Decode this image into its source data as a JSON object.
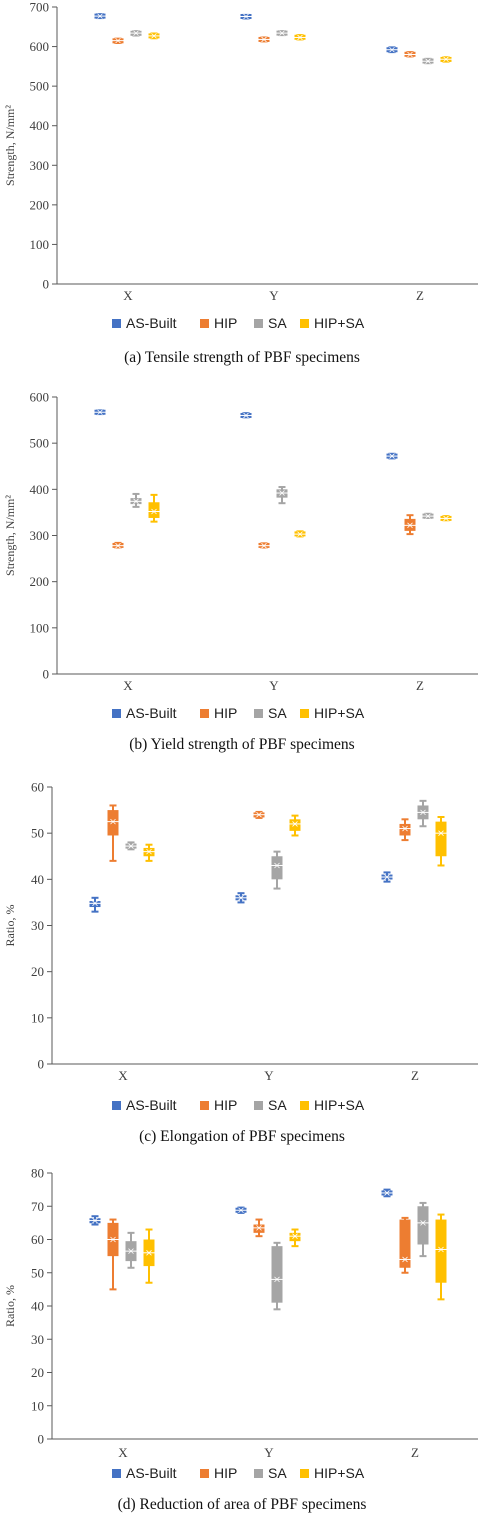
{
  "colors": {
    "AS-Built": "#4472C4",
    "HIP": "#ED7D31",
    "SA": "#A5A5A5",
    "HIP+SA": "#FFC000"
  },
  "chart_data": [
    {
      "type": "box",
      "caption": "(a) Tensile strength of PBF specimens",
      "ylabel": "Strength, N/mm²",
      "ylim": [
        0,
        700
      ],
      "yticks": [
        0,
        100,
        200,
        300,
        400,
        500,
        600,
        700
      ],
      "categories": [
        "X",
        "Y",
        "Z"
      ],
      "legend": [
        "AS-Built",
        "HIP",
        "SA",
        "HIP+SA"
      ],
      "series": [
        {
          "name": "AS-Built",
          "boxes": [
            [
              672,
              675,
              677,
              679,
              682
            ],
            [
              671,
              674,
              676,
              678,
              680
            ],
            [
              586,
              589,
              592,
              595,
              598
            ]
          ]
        },
        {
          "name": "HIP",
          "boxes": [
            [
              609,
              612,
              615,
              617,
              620
            ],
            [
              613,
              616,
              618,
              620,
              623
            ],
            [
              575,
              578,
              580,
              583,
              586
            ]
          ]
        },
        {
          "name": "SA",
          "boxes": [
            [
              628,
              631,
              634,
              636,
              639
            ],
            [
              629,
              632,
              634,
              636,
              639
            ],
            [
              558,
              561,
              563,
              566,
              569
            ]
          ]
        },
        {
          "name": "HIP+SA",
          "boxes": [
            [
              621,
              624,
              627,
              630,
              633
            ],
            [
              618,
              621,
              623,
              626,
              629
            ],
            [
              562,
              565,
              568,
              570,
              573
            ]
          ]
        }
      ]
    },
    {
      "type": "box",
      "caption": "(b) Yield strength of PBF specimens",
      "ylabel": "Strength, N/mm²",
      "ylim": [
        0,
        600
      ],
      "yticks": [
        0,
        100,
        200,
        300,
        400,
        500,
        600
      ],
      "categories": [
        "X",
        "Y",
        "Z"
      ],
      "legend": [
        "AS-Built",
        "HIP",
        "SA",
        "HIP+SA"
      ],
      "series": [
        {
          "name": "AS-Built",
          "boxes": [
            [
              563,
              565,
              567,
              569,
              571
            ],
            [
              556,
              558,
              560,
              562,
              565
            ],
            [
              467,
              470,
              472,
              474,
              477
            ]
          ]
        },
        {
          "name": "HIP",
          "boxes": [
            [
              274,
              276,
              278,
              281,
              284
            ],
            [
              274,
              276,
              278,
              281,
              283
            ],
            [
              303,
              310,
              322,
              336,
              344
            ]
          ]
        },
        {
          "name": "SA",
          "boxes": [
            [
              362,
              368,
              374,
              381,
              390
            ],
            [
              370,
              382,
              392,
              400,
              405
            ],
            [
              338,
              340,
              342,
              344,
              347
            ]
          ]
        },
        {
          "name": "HIP+SA",
          "boxes": [
            [
              330,
              338,
              352,
              372,
              388
            ],
            [
              298,
              301,
              303,
              306,
              309
            ],
            [
              333,
              335,
              337,
              339,
              342
            ]
          ]
        }
      ]
    },
    {
      "type": "box",
      "caption": "(c) Elongation of PBF specimens",
      "ylabel": "Ratio, %",
      "ylim": [
        0,
        60
      ],
      "yticks": [
        0,
        10,
        20,
        30,
        40,
        50,
        60
      ],
      "categories": [
        "X",
        "Y",
        "Z"
      ],
      "legend": [
        "AS-Built",
        "HIP",
        "SA",
        "HIP+SA"
      ],
      "series": [
        {
          "name": "AS-Built",
          "boxes": [
            [
              33.0,
              34.0,
              34.8,
              35.3,
              36.0
            ],
            [
              35.0,
              35.5,
              36.0,
              36.5,
              37.0
            ],
            [
              39.5,
              40.0,
              40.5,
              41.0,
              41.5
            ]
          ]
        },
        {
          "name": "HIP",
          "boxes": [
            [
              44.0,
              49.5,
              52.5,
              55.0,
              56.0
            ],
            [
              53.3,
              53.6,
              54.0,
              54.3,
              54.6
            ],
            [
              48.5,
              49.5,
              51.0,
              52.0,
              53.0
            ]
          ]
        },
        {
          "name": "SA",
          "boxes": [
            [
              46.5,
              46.8,
              47.2,
              47.6,
              48.0
            ],
            [
              38.0,
              40.0,
              43.0,
              45.0,
              46.0
            ],
            [
              51.5,
              53.0,
              54.5,
              56.0,
              57.0
            ]
          ]
        },
        {
          "name": "HIP+SA",
          "boxes": [
            [
              44.0,
              45.0,
              46.0,
              46.8,
              47.5
            ],
            [
              49.5,
              50.5,
              52.0,
              53.0,
              53.8
            ],
            [
              43.0,
              45.0,
              50.0,
              52.5,
              53.5
            ]
          ]
        }
      ]
    },
    {
      "type": "box",
      "caption": "(d) Reduction of area of PBF specimens",
      "ylabel": "Ratio, %",
      "ylim": [
        0,
        80
      ],
      "yticks": [
        0,
        10,
        20,
        30,
        40,
        50,
        60,
        70,
        80
      ],
      "categories": [
        "X",
        "Y",
        "Z"
      ],
      "legend": [
        "AS-Built",
        "HIP",
        "SA",
        "HIP+SA"
      ],
      "series": [
        {
          "name": "AS-Built",
          "boxes": [
            [
              64.5,
              65.0,
              65.7,
              66.3,
              67.0
            ],
            [
              68.0,
              68.4,
              68.8,
              69.2,
              69.6
            ],
            [
              73.0,
              73.5,
              74.0,
              74.5,
              75.0
            ]
          ]
        },
        {
          "name": "HIP",
          "boxes": [
            [
              45.0,
              55.0,
              60.0,
              65.0,
              66.0
            ],
            [
              61.0,
              62.0,
              63.5,
              64.5,
              66.0
            ],
            [
              50.0,
              51.5,
              54.0,
              66.0,
              66.5
            ]
          ]
        },
        {
          "name": "SA",
          "boxes": [
            [
              51.5,
              53.5,
              56.5,
              59.5,
              62.0
            ],
            [
              39.0,
              41.0,
              48.0,
              58.0,
              59.0
            ],
            [
              55.0,
              58.5,
              65.0,
              70.0,
              71.0
            ]
          ]
        },
        {
          "name": "HIP+SA",
          "boxes": [
            [
              47.0,
              52.0,
              56.0,
              60.0,
              63.0
            ],
            [
              58.0,
              59.5,
              61.0,
              62.0,
              63.0
            ],
            [
              42.0,
              47.0,
              57.0,
              66.0,
              67.5
            ]
          ]
        }
      ]
    }
  ]
}
